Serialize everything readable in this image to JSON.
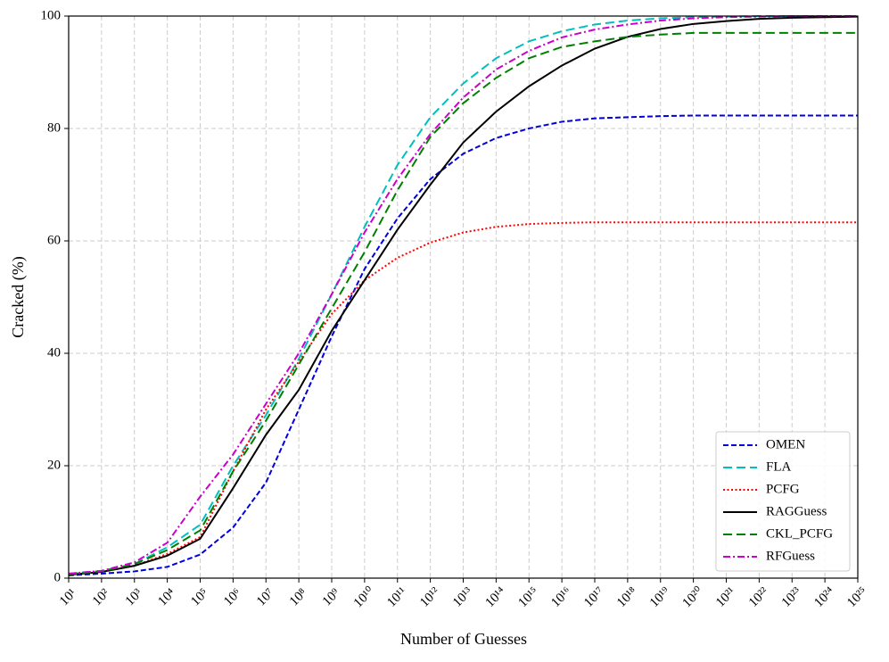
{
  "chart_data": {
    "type": "line",
    "x_label": "Number of Guesses",
    "y_label": "Cracked (%)",
    "log_x": true,
    "grid": true,
    "legend_position": "lower right",
    "x": [
      10.0,
      100.0,
      1000.0,
      10000.0,
      100000.0,
      1000000.0,
      10000000.0,
      100000000.0,
      1000000000.0,
      10000000000.0,
      100000000000.0,
      1000000000000.0,
      10000000000000.0,
      100000000000000.0,
      1000000000000000.0,
      1e+16,
      1e+17,
      1e+18,
      1e+19,
      1e+20,
      1e+21,
      1e+22,
      1e+23,
      1e+24,
      1e+25
    ],
    "xlim": [
      10.0,
      1e+25
    ],
    "xticks": [
      {
        "value": 10.0,
        "label": "10¹"
      },
      {
        "value": 100.0,
        "label": "10²"
      },
      {
        "value": 1000.0,
        "label": "10³"
      },
      {
        "value": 10000.0,
        "label": "10⁴"
      },
      {
        "value": 100000.0,
        "label": "10⁵"
      },
      {
        "value": 1000000.0,
        "label": "10⁶"
      },
      {
        "value": 10000000.0,
        "label": "10⁷"
      },
      {
        "value": 100000000.0,
        "label": "10⁸"
      },
      {
        "value": 1000000000.0,
        "label": "10⁹"
      },
      {
        "value": 10000000000.0,
        "label": "10¹⁰"
      },
      {
        "value": 100000000000.0,
        "label": "10¹¹"
      },
      {
        "value": 1000000000000.0,
        "label": "10¹²"
      },
      {
        "value": 10000000000000.0,
        "label": "10¹³"
      },
      {
        "value": 100000000000000.0,
        "label": "10¹⁴"
      },
      {
        "value": 1000000000000000.0,
        "label": "10¹⁵"
      },
      {
        "value": 1e+16,
        "label": "10¹⁶"
      },
      {
        "value": 1e+17,
        "label": "10¹⁷"
      },
      {
        "value": 1e+18,
        "label": "10¹⁸"
      },
      {
        "value": 1e+19,
        "label": "10¹⁹"
      },
      {
        "value": 1e+20,
        "label": "10²⁰"
      },
      {
        "value": 1e+21,
        "label": "10²¹"
      },
      {
        "value": 1e+22,
        "label": "10²²"
      },
      {
        "value": 1e+23,
        "label": "10²³"
      },
      {
        "value": 1e+24,
        "label": "10²⁴"
      },
      {
        "value": 1e+25,
        "label": "10²⁵"
      }
    ],
    "ylim": [
      0,
      100
    ],
    "yticks": [
      0,
      20,
      40,
      60,
      80,
      100
    ],
    "series": [
      {
        "name": "OMEN",
        "color": "#0000dd",
        "linestyle": "dashed",
        "values": [
          0.5,
          0.8,
          1.2,
          2,
          4.2,
          9,
          17,
          30,
          43,
          55,
          64,
          71,
          75.5,
          78.3,
          80,
          81.2,
          81.8,
          82,
          82.2,
          82.3,
          82.3,
          82.3,
          82.3,
          82.3,
          82.3
        ]
      },
      {
        "name": "FLA",
        "color": "#00bfbf",
        "linestyle": "longdash",
        "values": [
          0.8,
          1.3,
          2.5,
          5.5,
          9.5,
          20,
          29,
          39,
          50.5,
          62.5,
          73.5,
          82,
          88,
          92.5,
          95.5,
          97.3,
          98.5,
          99.2,
          99.6,
          99.8,
          99.9,
          100,
          100,
          100,
          100
        ]
      },
      {
        "name": "PCFG",
        "color": "#ff0000",
        "linestyle": "dotted",
        "values": [
          0.6,
          1.1,
          2.2,
          4.3,
          7.3,
          19,
          30,
          38.5,
          47,
          53,
          57,
          59.7,
          61.5,
          62.5,
          63,
          63.2,
          63.3,
          63.3,
          63.3,
          63.3,
          63.3,
          63.3,
          63.3,
          63.3,
          63.3
        ]
      },
      {
        "name": "RAGGuess",
        "color": "#000000",
        "linestyle": "solid",
        "values": [
          0.6,
          1.1,
          2.2,
          4,
          7,
          16,
          25.5,
          33.5,
          44,
          53,
          62,
          70,
          77.5,
          83,
          87.5,
          91.2,
          94.2,
          96.3,
          97.7,
          98.6,
          99.1,
          99.5,
          99.7,
          99.8,
          99.9
        ]
      },
      {
        "name": "CKL_PCFG",
        "color": "#008000",
        "linestyle": "longdash",
        "values": [
          0.7,
          1.2,
          2.5,
          5,
          8.5,
          19,
          28,
          38,
          48,
          58,
          69,
          78.5,
          84.5,
          89,
          92.5,
          94.5,
          95.5,
          96.3,
          96.7,
          97,
          97,
          97,
          97,
          97,
          97
        ]
      },
      {
        "name": "RFGuess",
        "color": "#cc00cc",
        "linestyle": "dashdot",
        "values": [
          0.8,
          1.3,
          2.8,
          6.3,
          14.5,
          22,
          31,
          40,
          50.5,
          61.5,
          71,
          79,
          85.5,
          90.5,
          93.8,
          96.2,
          97.6,
          98.5,
          99.2,
          99.6,
          99.8,
          99.9,
          100,
          100,
          100
        ]
      }
    ]
  }
}
